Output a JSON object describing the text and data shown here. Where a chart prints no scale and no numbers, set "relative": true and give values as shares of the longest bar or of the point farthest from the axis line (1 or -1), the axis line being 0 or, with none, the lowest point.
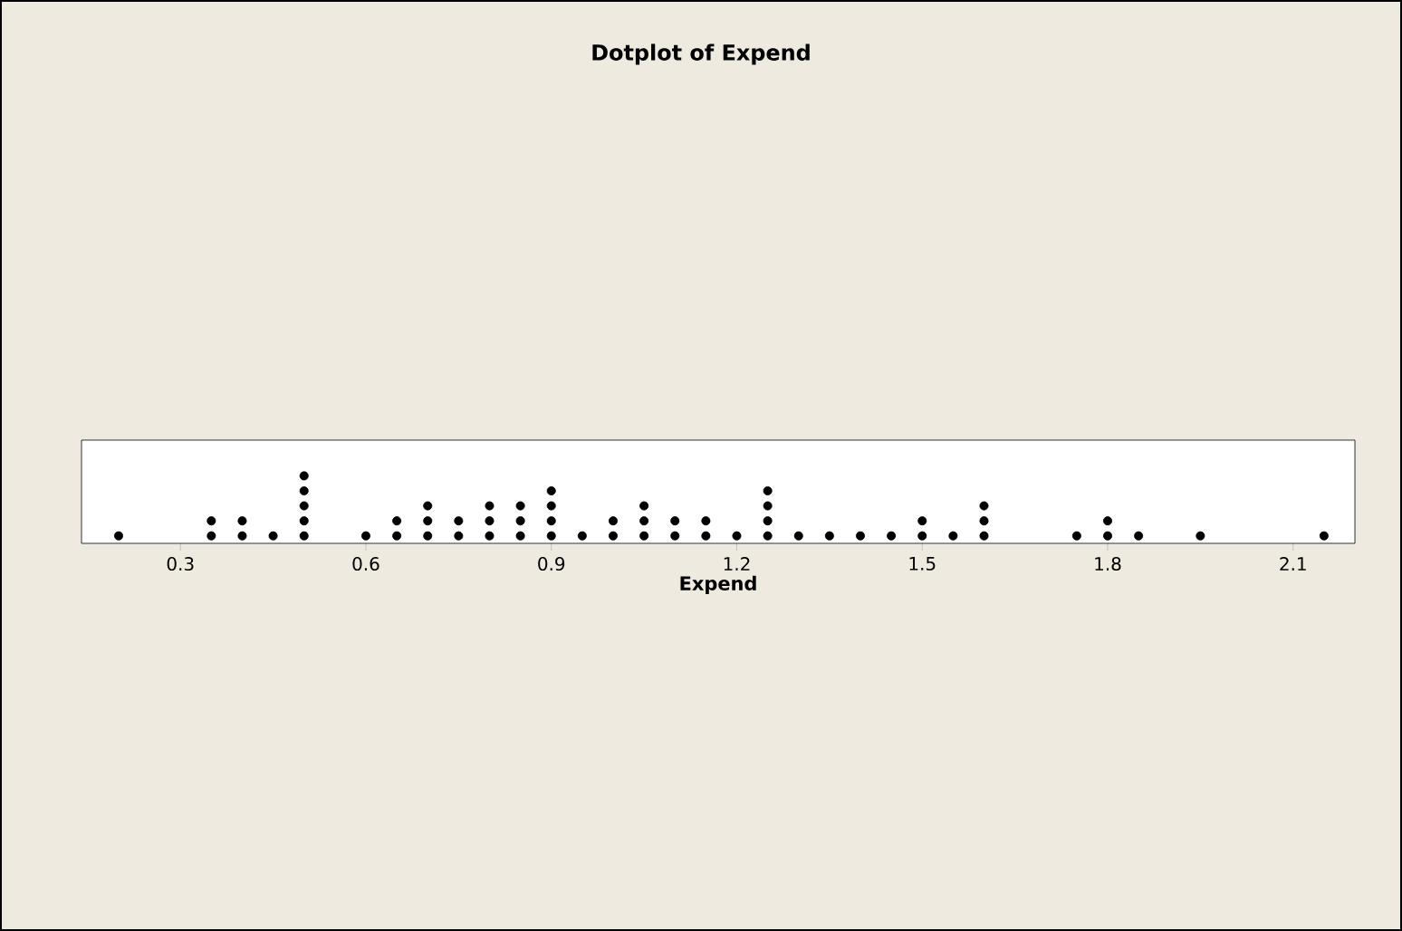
{
  "chart_data": {
    "type": "scatter",
    "title": "Dotplot of Expend",
    "xlabel": "Expend",
    "x": [
      0.2,
      0.35,
      0.35,
      0.4,
      0.4,
      0.45,
      0.5,
      0.5,
      0.5,
      0.5,
      0.5,
      0.6,
      0.65,
      0.65,
      0.7,
      0.7,
      0.7,
      0.75,
      0.75,
      0.8,
      0.8,
      0.8,
      0.85,
      0.85,
      0.85,
      0.9,
      0.9,
      0.9,
      0.9,
      0.95,
      1.0,
      1.0,
      1.05,
      1.05,
      1.05,
      1.1,
      1.1,
      1.15,
      1.15,
      1.2,
      1.25,
      1.25,
      1.25,
      1.25,
      1.3,
      1.35,
      1.4,
      1.45,
      1.5,
      1.5,
      1.55,
      1.6,
      1.6,
      1.6,
      1.75,
      1.8,
      1.8,
      1.85,
      1.95,
      2.15
    ],
    "values": [
      0.111,
      0.111,
      0.333,
      0.111,
      0.333,
      0.111,
      0.111,
      0.333,
      0.556,
      0.778,
      1,
      0.111,
      0.111,
      0.333,
      0.111,
      0.333,
      0.556,
      0.111,
      0.333,
      0.111,
      0.333,
      0.556,
      0.111,
      0.333,
      0.556,
      0.111,
      0.333,
      0.556,
      0.778,
      0.111,
      0.111,
      0.333,
      0.111,
      0.333,
      0.556,
      0.111,
      0.333,
      0.111,
      0.333,
      0.111,
      0.111,
      0.333,
      0.556,
      0.778,
      0.111,
      0.111,
      0.111,
      0.111,
      0.111,
      0.333,
      0.111,
      0.111,
      0.333,
      0.556,
      0.111,
      0.111,
      0.333,
      0.111,
      0.111,
      0.111
    ],
    "relative": true,
    "color": "#000000",
    "marker": "circle",
    "xlim": [
      0.14,
      2.2
    ],
    "xticks": [
      0.3,
      0.6,
      0.9,
      1.2,
      1.5,
      1.8,
      2.1
    ],
    "tick_labels": "x"
  }
}
